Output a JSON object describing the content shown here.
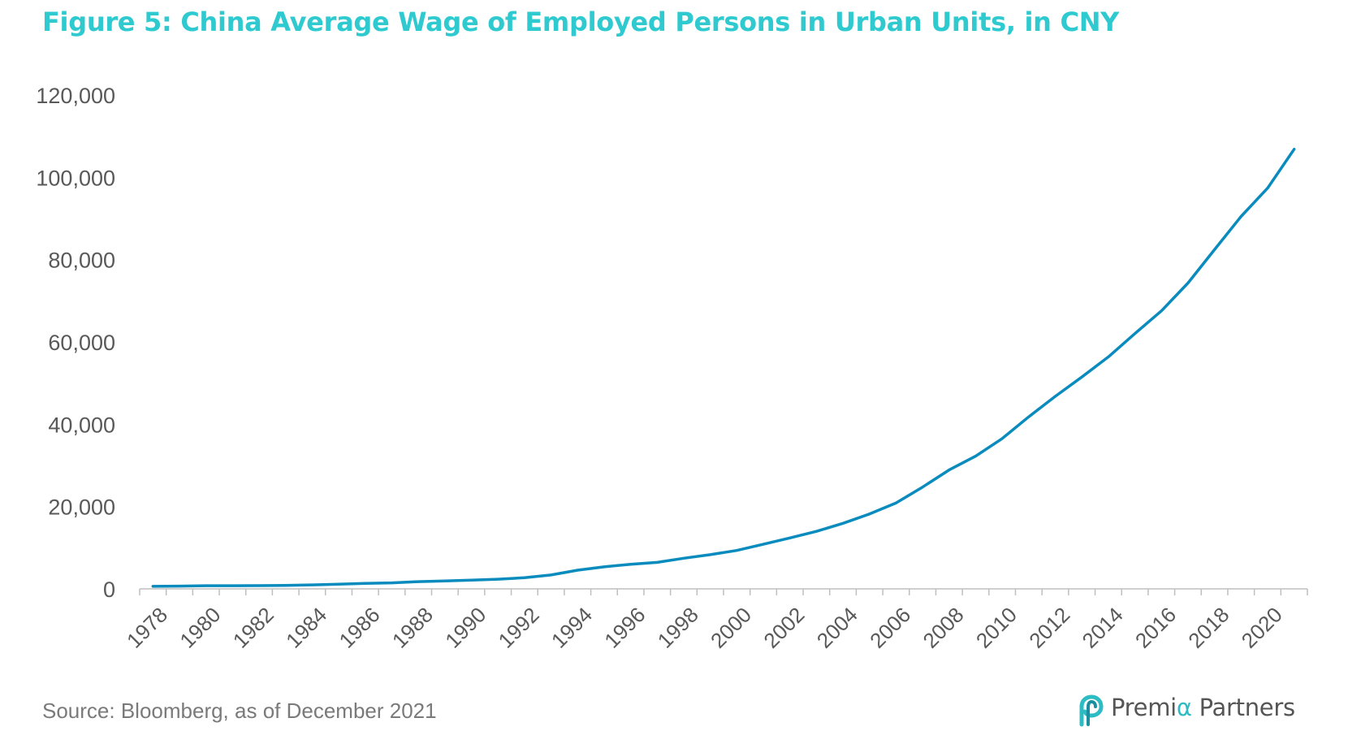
{
  "title": "Figure 5: China Average Wage of Employed Persons in Urban Units, in CNY",
  "source": "Source: Bloomberg, as of December 2021",
  "brand": {
    "name_part1": "Premi",
    "name_alpha": "α",
    "name_part2": " Partners"
  },
  "colors": {
    "title": "#2ecad0",
    "line": "#0a8bbd",
    "axis": "#bfbfbf",
    "text": "#595959",
    "brand_accent": "#2ebcc4"
  },
  "chart_data": {
    "type": "line",
    "title": "Figure 5: China Average Wage of Employed Persons in Urban Units, in CNY",
    "xlabel": "",
    "ylabel": "",
    "ylim": [
      0,
      120000
    ],
    "yticks": [
      0,
      20000,
      40000,
      60000,
      80000,
      100000,
      120000
    ],
    "ytick_labels": [
      "0",
      "20,000",
      "40,000",
      "60,000",
      "80,000",
      "100,000",
      "120,000"
    ],
    "xtick_labels": [
      "1978",
      "1980",
      "1982",
      "1984",
      "1986",
      "1988",
      "1990",
      "1992",
      "1994",
      "1996",
      "1998",
      "2000",
      "2002",
      "2004",
      "2006",
      "2008",
      "2010",
      "2012",
      "2014",
      "2016",
      "2018",
      "2020"
    ],
    "grid": false,
    "legend": "none",
    "x": [
      1978,
      1979,
      1980,
      1981,
      1982,
      1983,
      1984,
      1985,
      1986,
      1987,
      1988,
      1989,
      1990,
      1991,
      1992,
      1993,
      1994,
      1995,
      1996,
      1997,
      1998,
      1999,
      2000,
      2001,
      2002,
      2003,
      2004,
      2005,
      2006,
      2007,
      2008,
      2009,
      2010,
      2011,
      2012,
      2013,
      2014,
      2015,
      2016,
      2017,
      2018,
      2019,
      2020
    ],
    "series": [
      {
        "values": [
          615,
          668,
          762,
          772,
          798,
          826,
          974,
          1148,
          1329,
          1459,
          1747,
          1935,
          2140,
          2340,
          2711,
          3371,
          4538,
          5348,
          5980,
          6444,
          7446,
          8319,
          9333,
          10834,
          12373,
          13969,
          15920,
          18200,
          20856,
          24721,
          28898,
          32244,
          36539,
          41799,
          46769,
          51483,
          56360,
          62029,
          67569,
          74318,
          82413,
          90501,
          97379
        ]
      }
    ],
    "extra_point_note": "",
    "last_value_2021": 106837
  }
}
